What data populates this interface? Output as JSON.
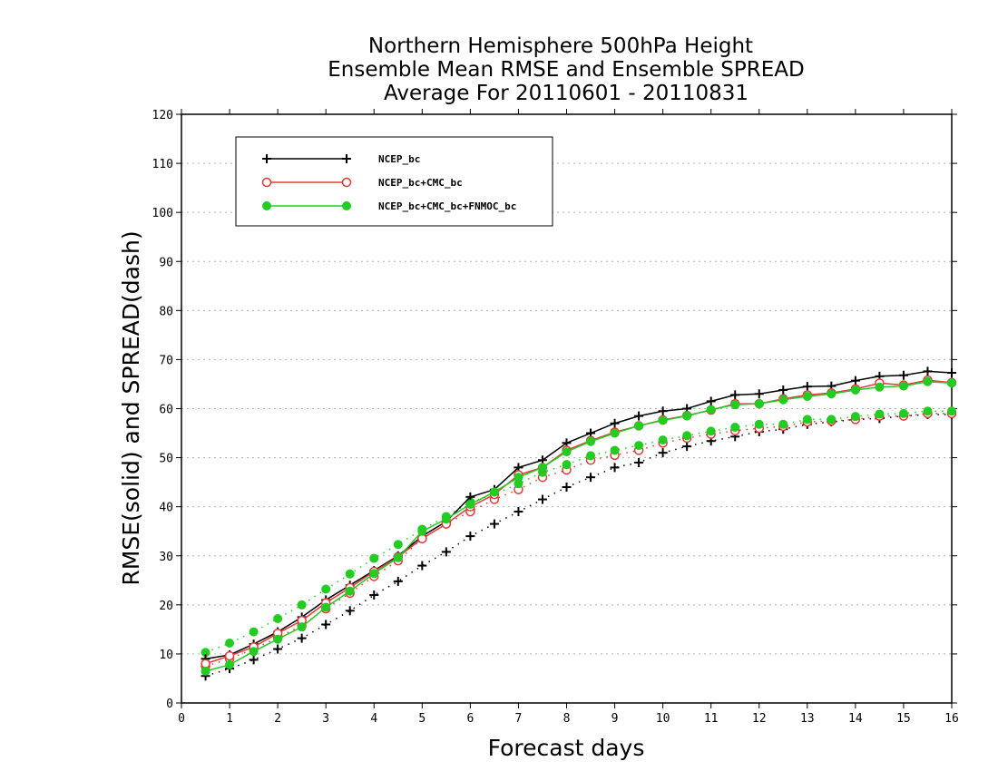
{
  "chart_data": {
    "type": "line",
    "title": [
      "Northern Hemisphere 500hPa Height",
      "Ensemble Mean RMSE and Ensemble SPREAD",
      "Average For 20110601 - 20110831"
    ],
    "xlabel": "Forecast days",
    "ylabel": "RMSE(solid) and SPREAD(dash)",
    "xlim": [
      0,
      16
    ],
    "ylim": [
      0,
      120
    ],
    "xticks": [
      0,
      1,
      2,
      3,
      4,
      5,
      6,
      7,
      8,
      9,
      10,
      11,
      12,
      13,
      14,
      15,
      16
    ],
    "yticks": [
      0,
      10,
      20,
      30,
      40,
      50,
      60,
      70,
      80,
      90,
      100,
      110,
      120
    ],
    "grid": "horizontal dotted",
    "legend_position": "top-left",
    "x": [
      0.5,
      1,
      1.5,
      2,
      2.5,
      3,
      3.5,
      4,
      4.5,
      5,
      5.5,
      6,
      6.5,
      7,
      7.5,
      8,
      8.5,
      9,
      9.5,
      10,
      10.5,
      11,
      11.5,
      12,
      12.5,
      13,
      13.5,
      14,
      14.5,
      15,
      15.5,
      16
    ],
    "series": [
      {
        "name": "NCEP_bc",
        "metric": "RMSE",
        "style": "solid",
        "marker": "plus",
        "color": "#000000",
        "values": [
          9,
          9.8,
          12,
          14.5,
          17.5,
          21,
          24,
          27,
          30,
          34,
          37,
          42,
          43.5,
          48,
          49.5,
          53,
          55,
          57,
          58.5,
          59.5,
          60,
          61.5,
          62.8,
          63,
          63.8,
          64.5,
          64.6,
          65.7,
          66.6,
          66.8,
          67.6,
          67.3
        ]
      },
      {
        "name": "NCEP_bc+CMC_bc",
        "metric": "RMSE",
        "style": "solid",
        "marker": "open-circle",
        "color": "#e8383a",
        "values": [
          8,
          9.6,
          11.4,
          14.2,
          16.8,
          20.4,
          23.5,
          26.8,
          29.8,
          33.5,
          36.5,
          40,
          42.5,
          46.5,
          48,
          51.5,
          53.5,
          55.2,
          56.5,
          57.7,
          58.6,
          59.7,
          61,
          61,
          62,
          62.8,
          63.2,
          64,
          65.2,
          64.8,
          65.8,
          65.3
        ]
      },
      {
        "name": "NCEP_bc+CMC_bc+FNMOC_bc",
        "metric": "RMSE",
        "style": "solid",
        "marker": "filled-circle",
        "color": "#22cc22",
        "values": [
          6.5,
          7.8,
          10.5,
          13,
          15.5,
          19.5,
          22.8,
          26.4,
          29.6,
          35,
          37.5,
          40.5,
          43,
          46,
          48,
          51.2,
          53.3,
          55,
          56.5,
          57.6,
          58.5,
          59.8,
          60.8,
          61,
          61.8,
          62.5,
          63,
          63.8,
          64.4,
          64.6,
          65.5,
          65.2
        ]
      },
      {
        "name": "NCEP_bc",
        "metric": "SPREAD",
        "style": "dotted",
        "marker": "plus",
        "color": "#000000",
        "values": [
          5.5,
          7,
          8.8,
          11,
          13.2,
          16,
          18.8,
          22,
          24.8,
          28,
          30.8,
          34,
          36.5,
          39,
          41.5,
          44,
          46,
          48,
          49,
          51,
          52.3,
          53.4,
          54.3,
          55.3,
          55.8,
          56.8,
          57.3,
          57.8,
          58,
          58.5,
          58.8,
          58.8
        ]
      },
      {
        "name": "NCEP_bc+CMC_bc",
        "metric": "SPREAD",
        "style": "dotted",
        "marker": "open-circle",
        "color": "#e8383a",
        "values": [
          7.5,
          9,
          11,
          13.3,
          15.8,
          19.2,
          22.4,
          25.8,
          29,
          33.5,
          36.5,
          39,
          41.5,
          43.5,
          46,
          47.5,
          49.5,
          50.5,
          51.5,
          53,
          54,
          54.8,
          55.5,
          56,
          56.4,
          57.3,
          57.5,
          57.8,
          58.5,
          58.5,
          59,
          59
        ]
      },
      {
        "name": "NCEP_bc+CMC_bc+FNMOC_bc",
        "metric": "SPREAD",
        "style": "dotted",
        "marker": "filled-circle",
        "color": "#22cc22",
        "values": [
          10.3,
          12.2,
          14.5,
          17.2,
          20,
          23.2,
          26.3,
          29.5,
          32.3,
          35.4,
          38,
          41,
          42.5,
          44.7,
          47,
          48.6,
          50.4,
          51.5,
          52.5,
          53.6,
          54.5,
          55.4,
          56.2,
          56.8,
          56.8,
          57.8,
          57.8,
          58.4,
          58.9,
          59,
          59.5,
          59.5
        ]
      }
    ]
  }
}
